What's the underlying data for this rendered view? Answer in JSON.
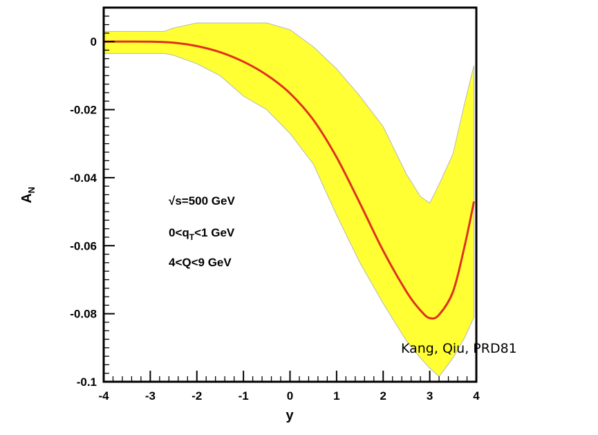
{
  "chart_data": {
    "type": "area",
    "xlabel": "y",
    "ylabel": "A",
    "ylabel_sub": "N",
    "xlim": [
      -4,
      4
    ],
    "ylim": [
      -0.1,
      0.01
    ],
    "x_ticks": [
      -4,
      -3,
      -2,
      -1,
      0,
      1,
      2,
      3,
      4
    ],
    "x_tick_labels": [
      "-4",
      "-3",
      "-2",
      "-1",
      "0",
      "1",
      "2",
      "3",
      "4"
    ],
    "y_ticks": [
      0,
      -0.02,
      -0.04,
      -0.06,
      -0.08,
      -0.1
    ],
    "y_tick_labels": [
      "0",
      "-0.02",
      "-0.04",
      "-0.06",
      "-0.08",
      "-0.1"
    ],
    "grid": false,
    "colors": {
      "band": "#ffff33",
      "band_edge": "#b8b8b8",
      "curve": "#e0301e"
    },
    "series": [
      {
        "type": "line",
        "x": [
          -4,
          -3,
          -2.5,
          -2,
          -1.5,
          -1,
          -0.5,
          0,
          0.5,
          1,
          1.5,
          2,
          2.5,
          2.8,
          3,
          3.2,
          3.5,
          3.75,
          3.95
        ],
        "y": [
          0,
          0,
          -0.0003,
          -0.0013,
          -0.0031,
          -0.0059,
          -0.0098,
          -0.0152,
          -0.023,
          -0.034,
          -0.0475,
          -0.0615,
          -0.0735,
          -0.079,
          -0.0813,
          -0.0803,
          -0.0735,
          -0.06,
          -0.047
        ]
      },
      {
        "type": "band",
        "x": [
          -4,
          -3,
          -2.7,
          -2.5,
          -2,
          -1.5,
          -1,
          -0.5,
          0,
          0.5,
          1,
          1.5,
          2,
          2.5,
          2.8,
          3,
          3.2,
          3.5,
          3.75,
          3.95
        ],
        "upper": [
          0.003,
          0.003,
          0.003,
          0.004,
          0.0055,
          0.0055,
          0.0055,
          0.0055,
          0.0035,
          -0.0015,
          -0.008,
          -0.016,
          -0.025,
          -0.039,
          -0.0455,
          -0.0475,
          -0.042,
          -0.033,
          -0.018,
          -0.007
        ],
        "lower": [
          -0.0035,
          -0.0035,
          -0.0035,
          -0.004,
          -0.0065,
          -0.01,
          -0.016,
          -0.02,
          -0.027,
          -0.036,
          -0.051,
          -0.065,
          -0.077,
          -0.088,
          -0.093,
          -0.096,
          -0.0985,
          -0.093,
          -0.087,
          -0.081
        ]
      }
    ],
    "annotations": [
      "√s=500 GeV",
      "0<q",
      "T",
      "<1 GeV",
      "4<Q<9 GeV"
    ],
    "credit": "Kang, Qiu, PRD81"
  }
}
